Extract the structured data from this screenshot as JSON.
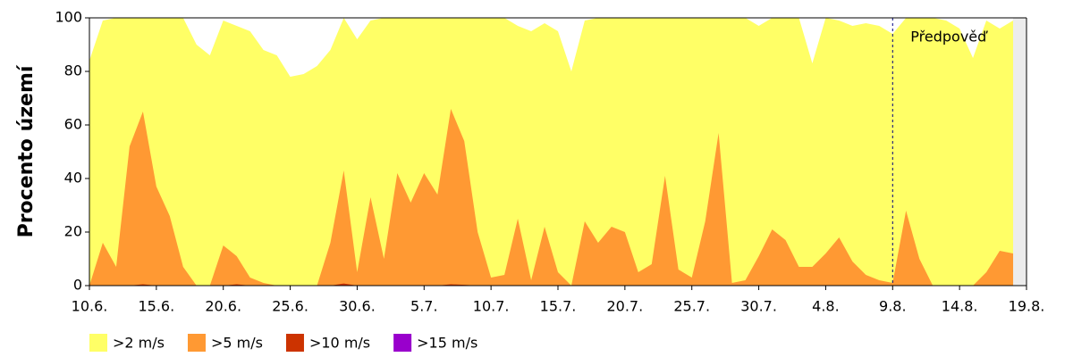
{
  "chart_data": {
    "type": "area",
    "ylabel": "Procento území",
    "annotation": {
      "text": "Předpověď",
      "x": "9.8."
    },
    "categories": [
      "10.6.",
      null,
      null,
      null,
      null,
      "15.6.",
      null,
      null,
      null,
      null,
      "20.6.",
      null,
      null,
      null,
      null,
      "25.6.",
      null,
      null,
      null,
      null,
      "30.6.",
      null,
      null,
      null,
      null,
      "5.7.",
      null,
      null,
      null,
      null,
      "10.7.",
      null,
      null,
      null,
      null,
      "15.7.",
      null,
      null,
      null,
      null,
      "20.7.",
      null,
      null,
      null,
      null,
      "25.7.",
      null,
      null,
      null,
      null,
      "30.7.",
      null,
      null,
      null,
      null,
      "4.8.",
      null,
      null,
      null,
      null,
      "9.8.",
      null,
      null,
      null,
      null,
      "14.8.",
      null,
      null,
      null,
      null,
      "19.8."
    ],
    "series": [
      {
        "name": ">2 m/s",
        "color": "#ffff66",
        "values": [
          84,
          99,
          100,
          100,
          100,
          100,
          100,
          100,
          90,
          86,
          99,
          97,
          95,
          88,
          86,
          78,
          79,
          82,
          88,
          100,
          92,
          99,
          100,
          100,
          100,
          100,
          100,
          100,
          100,
          100,
          100,
          100,
          97,
          95,
          98,
          95,
          80,
          99,
          100,
          100,
          100,
          100,
          100,
          100,
          100,
          100,
          100,
          100,
          100,
          100,
          97,
          100,
          100,
          100,
          83,
          100,
          99,
          97,
          98,
          97,
          94,
          100,
          100,
          100,
          99,
          96,
          85,
          99,
          96,
          99,
          null
        ]
      },
      {
        "name": ">5 m/s",
        "color": "#ff9933",
        "values": [
          0,
          16,
          7,
          52,
          65,
          37,
          26,
          7,
          0,
          0,
          15,
          11,
          3,
          1,
          0,
          0,
          0,
          0,
          16,
          43,
          5,
          33,
          10,
          42,
          31,
          42,
          34,
          66,
          54,
          20,
          3,
          4,
          25,
          2,
          22,
          5,
          0,
          24,
          16,
          22,
          20,
          5,
          8,
          41,
          6,
          3,
          24,
          57,
          1,
          2,
          11,
          21,
          17,
          7,
          7,
          12,
          18,
          9,
          4,
          2,
          1,
          28,
          10,
          0,
          0,
          0,
          0,
          5,
          13,
          12,
          null
        ]
      },
      {
        "name": ">10 m/s",
        "color": "#cc3300",
        "values": [
          0,
          0,
          0,
          0,
          0.5,
          0,
          0,
          0,
          0,
          0,
          0,
          0.5,
          0,
          0,
          0,
          0,
          0,
          0,
          0,
          0.8,
          0,
          0,
          0,
          0,
          0,
          0,
          0,
          0.5,
          0.3,
          0,
          0,
          0,
          0,
          0,
          0,
          0,
          0,
          0,
          0,
          0,
          0,
          0,
          0,
          0,
          0,
          0,
          0,
          0,
          0,
          0,
          0,
          0,
          0,
          0,
          0,
          0,
          0,
          0,
          0,
          0,
          0,
          0,
          0,
          0,
          0,
          0,
          0,
          0,
          0,
          0,
          null
        ]
      },
      {
        "name": ">15 m/s",
        "color": "#9900cc",
        "values": [
          0,
          0,
          0,
          0,
          0,
          0,
          0,
          0,
          0,
          0,
          0,
          0,
          0,
          0,
          0,
          0,
          0,
          0,
          0,
          0,
          0,
          0,
          0,
          0,
          0,
          0,
          0,
          0,
          0,
          0,
          0,
          0,
          0,
          0,
          0,
          0,
          0,
          0,
          0,
          0,
          0,
          0,
          0,
          0,
          0,
          0,
          0,
          0,
          0,
          0,
          0,
          0,
          0,
          0,
          0,
          0,
          0,
          0,
          0,
          0,
          0,
          0,
          0,
          0,
          0,
          0,
          0,
          0,
          0,
          0,
          null
        ]
      }
    ],
    "ylim": [
      0,
      100
    ],
    "yticks": [
      0,
      20,
      40,
      60,
      80,
      100
    ],
    "legend": "bottom-left"
  }
}
